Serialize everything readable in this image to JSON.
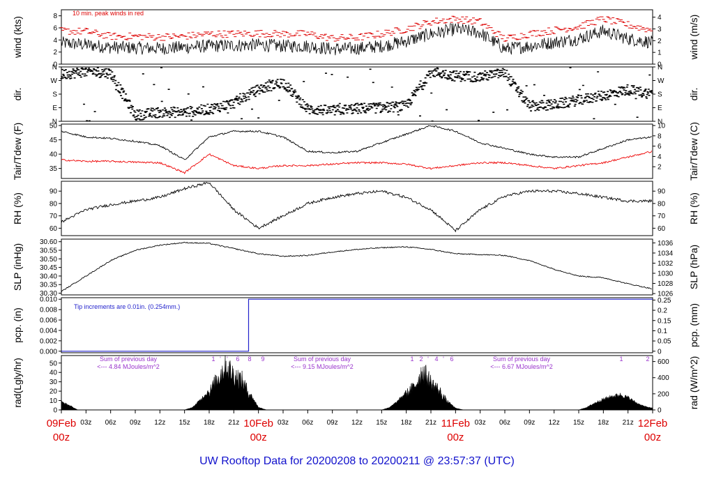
{
  "title": "UW Rooftop Data for 20200208  to  20200211 @ 23:57:37  (UTC)",
  "colors": {
    "primary": "#000000",
    "peak": "#dd0000",
    "dewpoint": "#ee0000",
    "precip": "#2222cc",
    "radiation_label": "#9933cc",
    "title": "#1111cc",
    "date": "#dd0000"
  },
  "x_axis": {
    "hour_ticks": [
      "03z",
      "06z",
      "09z",
      "12z",
      "15z",
      "18z",
      "21z",
      "03z",
      "06z",
      "09z",
      "12z",
      "15z",
      "18z",
      "21z",
      "03z",
      "06z",
      "09z",
      "12z",
      "15z",
      "18z",
      "21z"
    ],
    "day_labels": [
      {
        "date": "09Feb",
        "hour": "00z"
      },
      {
        "date": "10Feb",
        "hour": "00z"
      },
      {
        "date": "11Feb",
        "hour": "00z"
      },
      {
        "date": "12Feb",
        "hour": "00z"
      }
    ]
  },
  "annotations": {
    "wind_note": "10 min. peak winds in red",
    "tip_note": "Tip increments are 0.01in. (0.254mm.)",
    "rad_sums": [
      {
        "line1": "Sum of previous day",
        "line2": "<--- 4.84 MJoules/m^2"
      },
      {
        "line1": "Sum of previous day",
        "line2": "<--- 9.15 MJoules/m^2"
      },
      {
        "line1": "Sum of previous day",
        "line2": "<--- 6.67 MJoules/m^2"
      }
    ],
    "rad_markers_day1": [
      "1",
      "'",
      "'",
      "6",
      "8",
      "9"
    ],
    "rad_markers_day2": [
      "1",
      "2",
      "'",
      "4",
      "'",
      "6"
    ],
    "rad_markers_day3": [
      "1",
      "2"
    ]
  },
  "chart_data": [
    {
      "type": "line",
      "name": "wind",
      "ylabel_left": "wind (kts)",
      "ylabel_right": "wind (m/s)",
      "ylim": [
        0,
        9
      ],
      "ticks_left": [
        "0",
        "2",
        "4",
        "6",
        "8"
      ],
      "ticks_right": [
        "0",
        "1",
        "2",
        "3",
        "4"
      ],
      "x_hours": [
        0,
        3,
        6,
        9,
        12,
        15,
        18,
        21,
        24,
        27,
        30,
        33,
        36,
        39,
        42,
        45,
        48,
        51,
        54,
        57,
        60,
        63,
        66,
        69,
        72
      ],
      "series": [
        {
          "name": "wind",
          "values": [
            3.5,
            3.2,
            2.8,
            2.7,
            2.6,
            2.8,
            3,
            3.1,
            3.2,
            3,
            3,
            2.5,
            2.6,
            3,
            3.8,
            5,
            5.8,
            5.2,
            2.5,
            3,
            3.6,
            4.2,
            5.5,
            4.2,
            3.6
          ]
        },
        {
          "name": "peak",
          "values": [
            5.5,
            5.4,
            4.6,
            4.6,
            4.5,
            4.6,
            5,
            5,
            5.1,
            5,
            5,
            4.3,
            4.4,
            5,
            5.8,
            7,
            7.5,
            7,
            4.2,
            5,
            5.6,
            6.2,
            7.5,
            6.5,
            5.6
          ]
        }
      ]
    },
    {
      "type": "scatter",
      "name": "direction",
      "ylabel_left": "dir.",
      "ylabel_right": "dir.",
      "ticks_left": [
        "N",
        "E",
        "S",
        "W",
        "N"
      ],
      "ticks_right": [
        "N",
        "E",
        "S",
        "W",
        "N"
      ],
      "x_hours": [
        0,
        3,
        6,
        9,
        12,
        15,
        18,
        21,
        24,
        27,
        30,
        33,
        36,
        39,
        42,
        45,
        48,
        51,
        54,
        57,
        60,
        63,
        66,
        69,
        72
      ],
      "values_deg": [
        310,
        330,
        320,
        40,
        60,
        60,
        80,
        120,
        210,
        260,
        80,
        70,
        85,
        90,
        100,
        330,
        300,
        295,
        320,
        100,
        110,
        140,
        170,
        210,
        180
      ]
    },
    {
      "type": "line",
      "name": "temperature",
      "ylabel_left": "Tair/Tdew (F)",
      "ylabel_right": "Tair/Tdew (C)",
      "ylim": [
        31.5,
        50.5
      ],
      "ticks_left": [
        "35",
        "40",
        "45",
        "50"
      ],
      "ticks_right": [
        "2",
        "4",
        "6",
        "8",
        "10"
      ],
      "x_hours": [
        0,
        3,
        6,
        9,
        12,
        15,
        18,
        21,
        24,
        27,
        30,
        33,
        36,
        39,
        42,
        45,
        48,
        51,
        54,
        57,
        60,
        63,
        66,
        69,
        72
      ],
      "series": [
        {
          "name": "Tair",
          "values": [
            48,
            46,
            45.5,
            44.5,
            43,
            38,
            46,
            48,
            48,
            46,
            41,
            40.5,
            41,
            44,
            47,
            50,
            48,
            44,
            42,
            40,
            39,
            39,
            42,
            45,
            46
          ]
        },
        {
          "name": "Tdew",
          "values": [
            38,
            37.5,
            37.5,
            37.2,
            37,
            33.5,
            40,
            36,
            35,
            36,
            36,
            36.5,
            37,
            37,
            36.5,
            35,
            36,
            37,
            37,
            36,
            35,
            36,
            37,
            39,
            41
          ]
        }
      ]
    },
    {
      "type": "line",
      "name": "rh",
      "ylabel_left": "RH (%)",
      "ylabel_right": "RH (%)",
      "ylim": [
        54,
        98
      ],
      "ticks_left": [
        "60",
        "70",
        "80",
        "90"
      ],
      "ticks_right": [
        "60",
        "70",
        "80",
        "90"
      ],
      "x_hours": [
        0,
        3,
        6,
        9,
        12,
        15,
        18,
        21,
        24,
        27,
        30,
        33,
        36,
        39,
        42,
        45,
        48,
        51,
        54,
        57,
        60,
        63,
        66,
        69,
        72
      ],
      "values": [
        65,
        75,
        79,
        82,
        85,
        92,
        97,
        75,
        60,
        70,
        80,
        85,
        88,
        90,
        85,
        75,
        58,
        75,
        86,
        90,
        90,
        88,
        85,
        82,
        82
      ]
    },
    {
      "type": "line",
      "name": "slp",
      "ylabel_left": "SLP (inHg)",
      "ylabel_right": "SLP (hPa)",
      "ylim": [
        30.29,
        30.615
      ],
      "ticks_left": [
        "30.30",
        "30.35",
        "30.40",
        "30.45",
        "30.50",
        "30.55",
        "30.60"
      ],
      "ticks_right": [
        "1026",
        "1028",
        "1030",
        "1032",
        "1034",
        "1036"
      ],
      "x_hours": [
        0,
        3,
        6,
        9,
        12,
        15,
        18,
        21,
        24,
        27,
        30,
        33,
        36,
        39,
        42,
        45,
        48,
        51,
        54,
        57,
        60,
        63,
        66,
        69,
        72
      ],
      "values": [
        30.31,
        30.4,
        30.49,
        30.55,
        30.58,
        30.595,
        30.59,
        30.56,
        30.53,
        30.515,
        30.52,
        30.54,
        30.555,
        30.565,
        30.57,
        30.555,
        30.53,
        30.525,
        30.52,
        30.49,
        30.44,
        30.4,
        30.39,
        30.355,
        30.325
      ]
    },
    {
      "type": "line",
      "name": "precip",
      "ylabel_left": "pcp. (in)",
      "ylabel_right": "pcp. (mm)",
      "ylim": [
        -0.0003,
        0.0103
      ],
      "ticks_left": [
        "0.000",
        "0.002",
        "0.004",
        "0.006",
        "0.008",
        "0.010"
      ],
      "ticks_right": [
        "0",
        "0.05",
        "0.1",
        "0.15",
        "0.2",
        "0.25"
      ],
      "x_hours": [
        0,
        22.8,
        22.8,
        72
      ],
      "values": [
        0,
        0,
        0.01,
        0.01
      ]
    },
    {
      "type": "area",
      "name": "radiation",
      "ylabel_left": "rad(Lgly/hr)",
      "ylabel_right": "rad (W/m^2)",
      "ylim": [
        0,
        58
      ],
      "ticks_left": [
        "0",
        "10",
        "20",
        "30",
        "40",
        "50"
      ],
      "ticks_right": [
        "0",
        "200",
        "400",
        "600"
      ],
      "x_hours": [
        0,
        1,
        2,
        15,
        16,
        17,
        18,
        19,
        20,
        21,
        22,
        23,
        24,
        25,
        39,
        40,
        41,
        42,
        43,
        44,
        45,
        46,
        47,
        48,
        49,
        63,
        64,
        65,
        66,
        67,
        68,
        69,
        70,
        71,
        72
      ],
      "values": [
        9,
        5,
        0,
        0,
        3,
        12,
        22,
        40,
        57,
        45,
        38,
        18,
        3,
        0,
        0,
        3,
        10,
        20,
        30,
        50,
        35,
        25,
        10,
        2,
        0,
        0,
        3,
        8,
        12,
        15,
        17,
        14,
        8,
        4,
        2
      ]
    }
  ]
}
